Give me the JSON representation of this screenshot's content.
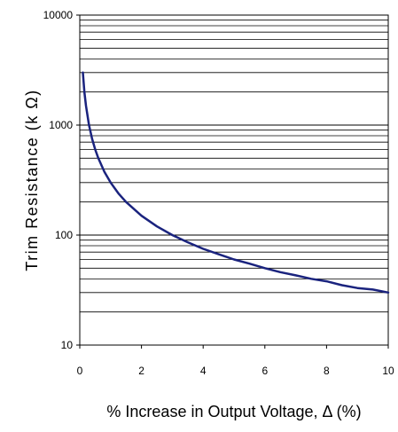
{
  "chart_data": {
    "type": "line",
    "title": "",
    "xlabel": "% Increase in Output Voltage, Δ (%)",
    "ylabel": "Trim Resistance (k Ω)",
    "xlim": [
      0,
      10
    ],
    "ylim": [
      10,
      10000
    ],
    "y_scale": "log",
    "grid": "horizontal major and minor lines",
    "x_ticks": [
      "0",
      "2",
      "4",
      "6",
      "8",
      "10"
    ],
    "y_ticks": [
      "10",
      "100",
      "1000",
      "10000"
    ],
    "line_color": "#1a237e",
    "series": [
      {
        "x": [
          0.1,
          0.15,
          0.2,
          0.3,
          0.4,
          0.5,
          0.6,
          0.8,
          1.0,
          1.25,
          1.5,
          2.0,
          2.5,
          3.0,
          3.5,
          4.0,
          4.5,
          5.0,
          5.5,
          6.0,
          6.5,
          7.0,
          7.5,
          8.0,
          8.5,
          9.0,
          9.5,
          10.0
        ],
        "y": [
          3000,
          2000,
          1500,
          1000,
          750,
          600,
          500,
          375,
          300,
          240,
          200,
          150,
          120,
          100,
          86,
          75,
          67,
          60,
          55,
          50,
          46,
          43,
          40,
          38,
          35,
          33,
          32,
          30
        ]
      }
    ]
  }
}
